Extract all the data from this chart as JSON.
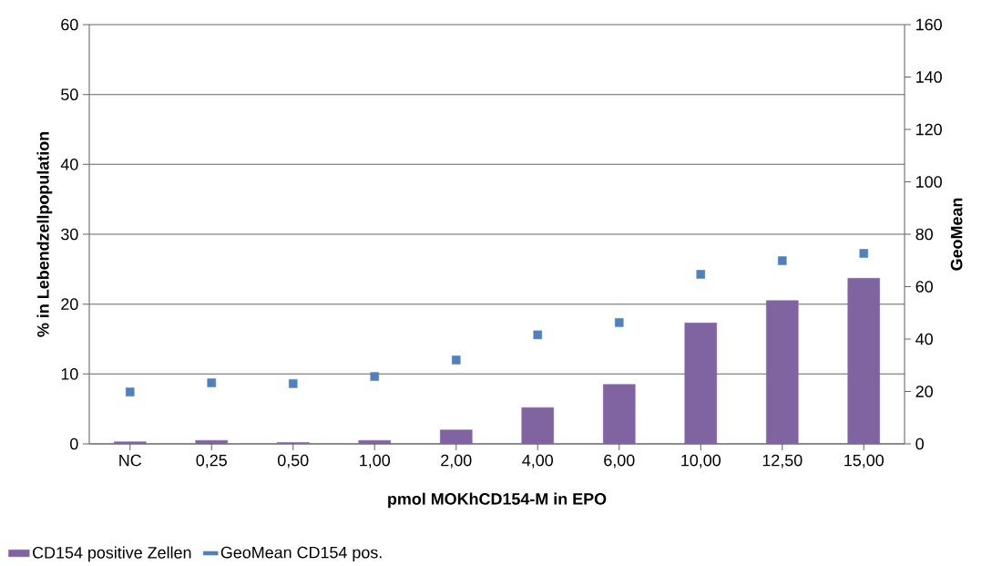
{
  "chart_data": {
    "type": "bar",
    "xlabel": "pmol MOKhCD154-M in EPO",
    "ylabel": "% in Lebendzellpopulation",
    "y2label": "GeoMean",
    "categories": [
      "NC",
      "0,25",
      "0,50",
      "1,00",
      "2,00",
      "4,00",
      "6,00",
      "10,00",
      "12,50",
      "15,00"
    ],
    "series": [
      {
        "name": "CD154 positive Zellen",
        "color": "#8064a2",
        "values": [
          0.3,
          0.5,
          0.2,
          0.5,
          2.0,
          5.2,
          8.5,
          17.3,
          20.5,
          23.7
        ]
      },
      {
        "name": "GeoMean CD154 pos.",
        "type": "scatter",
        "axis": "y2",
        "marker": "square",
        "color": "#4f81bd",
        "values": [
          19.8,
          23.3,
          23,
          25.7,
          32,
          41.6,
          46.3,
          64.7,
          69.9,
          72.7
        ]
      }
    ],
    "ylim": [
      0,
      60
    ],
    "yticks": [
      0,
      10,
      20,
      30,
      40,
      50,
      60
    ],
    "y2lim": [
      0,
      160
    ],
    "y2ticks": [
      0,
      20,
      40,
      60,
      80,
      100,
      120,
      140,
      160
    ],
    "grid": "y",
    "legend": "bottom left"
  }
}
